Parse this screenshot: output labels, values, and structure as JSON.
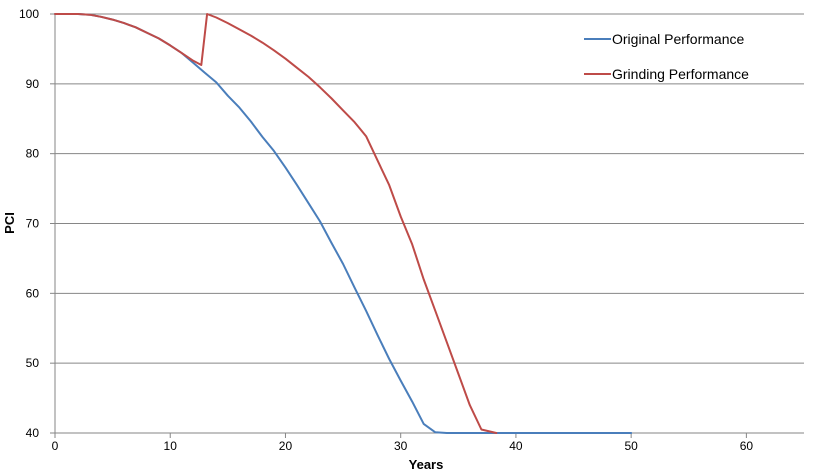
{
  "chart_data": {
    "type": "line",
    "title": "",
    "xlabel": "Years",
    "ylabel": "PCI",
    "xlim": [
      0,
      65
    ],
    "ylim": [
      40,
      100
    ],
    "x_ticks": [
      0,
      10,
      20,
      30,
      40,
      50,
      60
    ],
    "y_ticks": [
      40,
      50,
      60,
      70,
      80,
      90,
      100
    ],
    "grid": "horizontal",
    "legend_placement": "top-right",
    "series": [
      {
        "name": "Original Performance",
        "color": "#4a7ebb",
        "x": [
          0,
          1,
          2,
          3,
          4,
          5,
          6,
          7,
          8,
          9,
          10,
          11,
          12,
          13,
          14,
          15,
          16,
          17,
          18,
          19,
          20,
          21,
          22,
          23,
          24,
          25,
          26,
          27,
          28,
          29,
          30,
          31,
          32,
          33,
          34,
          35,
          40,
          45,
          50
        ],
        "y": [
          100,
          100,
          100,
          99.9,
          99.6,
          99.2,
          98.7,
          98.1,
          97.3,
          96.5,
          95.5,
          94.4,
          93.0,
          91.6,
          90.2,
          88.3,
          86.6,
          84.6,
          82.4,
          80.4,
          78.0,
          75.5,
          72.9,
          70.3,
          67.2,
          64.2,
          60.8,
          57.5,
          54.0,
          50.6,
          47.5,
          44.5,
          41.3,
          40.1,
          40,
          40,
          40,
          40,
          40
        ]
      },
      {
        "name": "Grinding Performance",
        "color": "#be4b48",
        "x": [
          0,
          1,
          2,
          3,
          4,
          5,
          6,
          7,
          8,
          9,
          10,
          11,
          12,
          12.7,
          13.2,
          14,
          15,
          16,
          17,
          18,
          19,
          20,
          21,
          22,
          23,
          24,
          25,
          26,
          27,
          28,
          29,
          30,
          31,
          32,
          33,
          34,
          35,
          36,
          37,
          38.3
        ],
        "y": [
          100,
          100,
          100,
          99.9,
          99.6,
          99.2,
          98.7,
          98.1,
          97.3,
          96.5,
          95.5,
          94.4,
          93.3,
          92.7,
          100,
          99.5,
          98.7,
          97.8,
          96.9,
          95.9,
          94.8,
          93.6,
          92.3,
          91.0,
          89.5,
          87.9,
          86.2,
          84.5,
          82.5,
          79.0,
          75.5,
          71.0,
          67.0,
          62.0,
          57.5,
          53.0,
          48.5,
          44.0,
          40.5,
          40
        ]
      }
    ]
  }
}
